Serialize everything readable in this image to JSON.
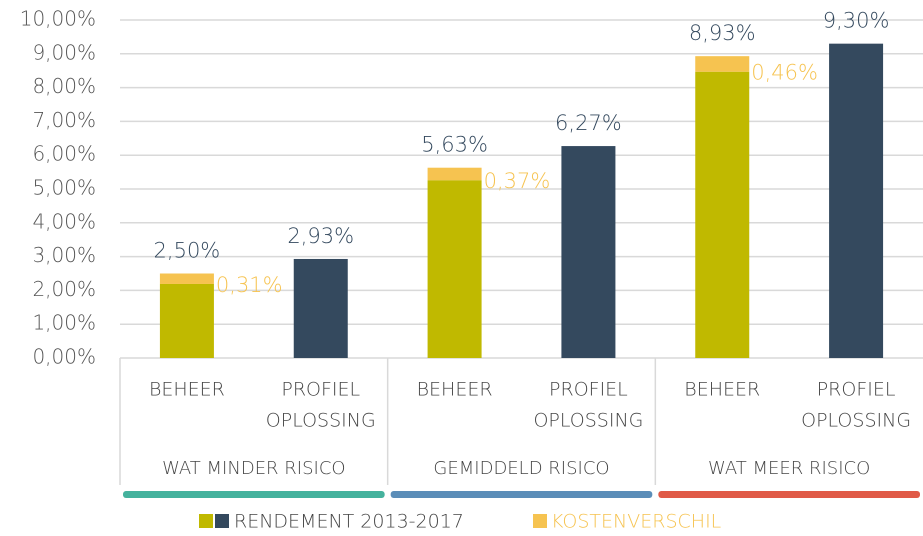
{
  "chart_data": {
    "type": "stacked-bar",
    "categories": [
      [
        "BEHEER"
      ],
      [
        "PROFIEL",
        "OPLOSSING"
      ],
      [
        "BEHEER"
      ],
      [
        "PROFIEL",
        "OPLOSSING"
      ],
      [
        "BEHEER"
      ],
      [
        "PROFIEL",
        "OPLOSSING"
      ]
    ],
    "groups": [
      {
        "label": "WAT MINDER RISICO",
        "color": "#45b29d"
      },
      {
        "label": "GEMIDDELD RISICO",
        "color": "#5b8db8"
      },
      {
        "label": "WAT MEER RISICO",
        "color": "#e05a47"
      }
    ],
    "series": [
      {
        "name": "RENDEMENT 2013-2017",
        "colors": [
          "#c0b900",
          "#34495e"
        ],
        "values": [
          2.19,
          2.93,
          5.26,
          6.27,
          8.47,
          9.3
        ],
        "value_labels": [
          null,
          "2,93%",
          null,
          "6,27%",
          null,
          "9,30%"
        ]
      },
      {
        "name": "KOSTENVERSCHIL",
        "color": "#f6c350",
        "values": [
          0.31,
          null,
          0.37,
          null,
          0.46,
          null
        ],
        "value_labels": [
          "0,31%",
          null,
          "0,37%",
          null,
          "0,46%",
          null
        ]
      }
    ],
    "totals": [
      2.5,
      null,
      5.63,
      null,
      8.93,
      null
    ],
    "total_labels": [
      "2,50%",
      null,
      "5,63%",
      null,
      "8,93%",
      null
    ],
    "ylim": [
      0,
      10
    ],
    "yticks": [
      {
        "value": 0,
        "label": "0,00%"
      },
      {
        "value": 1,
        "label": "1,00%"
      },
      {
        "value": 2,
        "label": "2,00%"
      },
      {
        "value": 3,
        "label": "3,00%"
      },
      {
        "value": 4,
        "label": "4,00%"
      },
      {
        "value": 5,
        "label": "5,00%"
      },
      {
        "value": 6,
        "label": "6,00%"
      },
      {
        "value": 7,
        "label": "7,00%"
      },
      {
        "value": 8,
        "label": "8,00%"
      },
      {
        "value": 9,
        "label": "9,00%"
      },
      {
        "value": 10,
        "label": "10,00%"
      }
    ],
    "grid": true
  }
}
